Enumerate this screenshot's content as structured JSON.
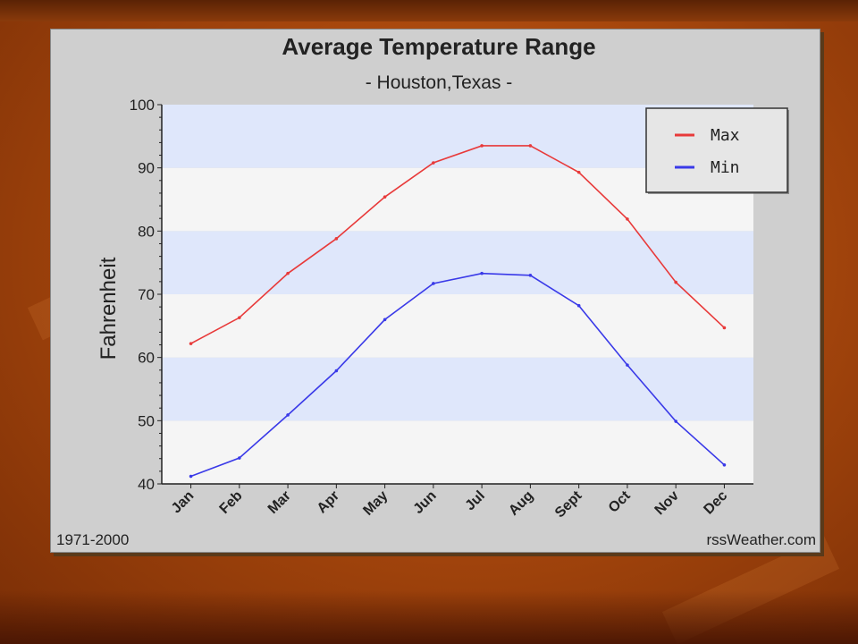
{
  "chart_data": {
    "type": "line",
    "title": "Average Temperature Range",
    "subtitle": "- Houston,Texas -",
    "xlabel": "",
    "ylabel": "Fahrenheit",
    "categories": [
      "Jan",
      "Feb",
      "Mar",
      "Apr",
      "May",
      "Jun",
      "Jul",
      "Aug",
      "Sept",
      "Oct",
      "Nov",
      "Dec"
    ],
    "ylim": [
      40,
      100
    ],
    "yticks": [
      40,
      50,
      60,
      70,
      80,
      90,
      100
    ],
    "series": [
      {
        "name": "Max",
        "color": "#e83a3a",
        "values": [
          62.2,
          66.3,
          73.3,
          78.8,
          85.4,
          90.8,
          93.5,
          93.5,
          89.3,
          81.9,
          71.9,
          64.7
        ]
      },
      {
        "name": "Min",
        "color": "#3a3ae8",
        "values": [
          41.2,
          44.1,
          50.9,
          57.9,
          66.0,
          71.7,
          73.3,
          73.0,
          68.2,
          58.8,
          49.9,
          43.0
        ]
      }
    ],
    "legend_position": "top-right",
    "grid": "horizontal bands",
    "footer_left": "1971-2000",
    "footer_right": "rssWeather.com"
  }
}
